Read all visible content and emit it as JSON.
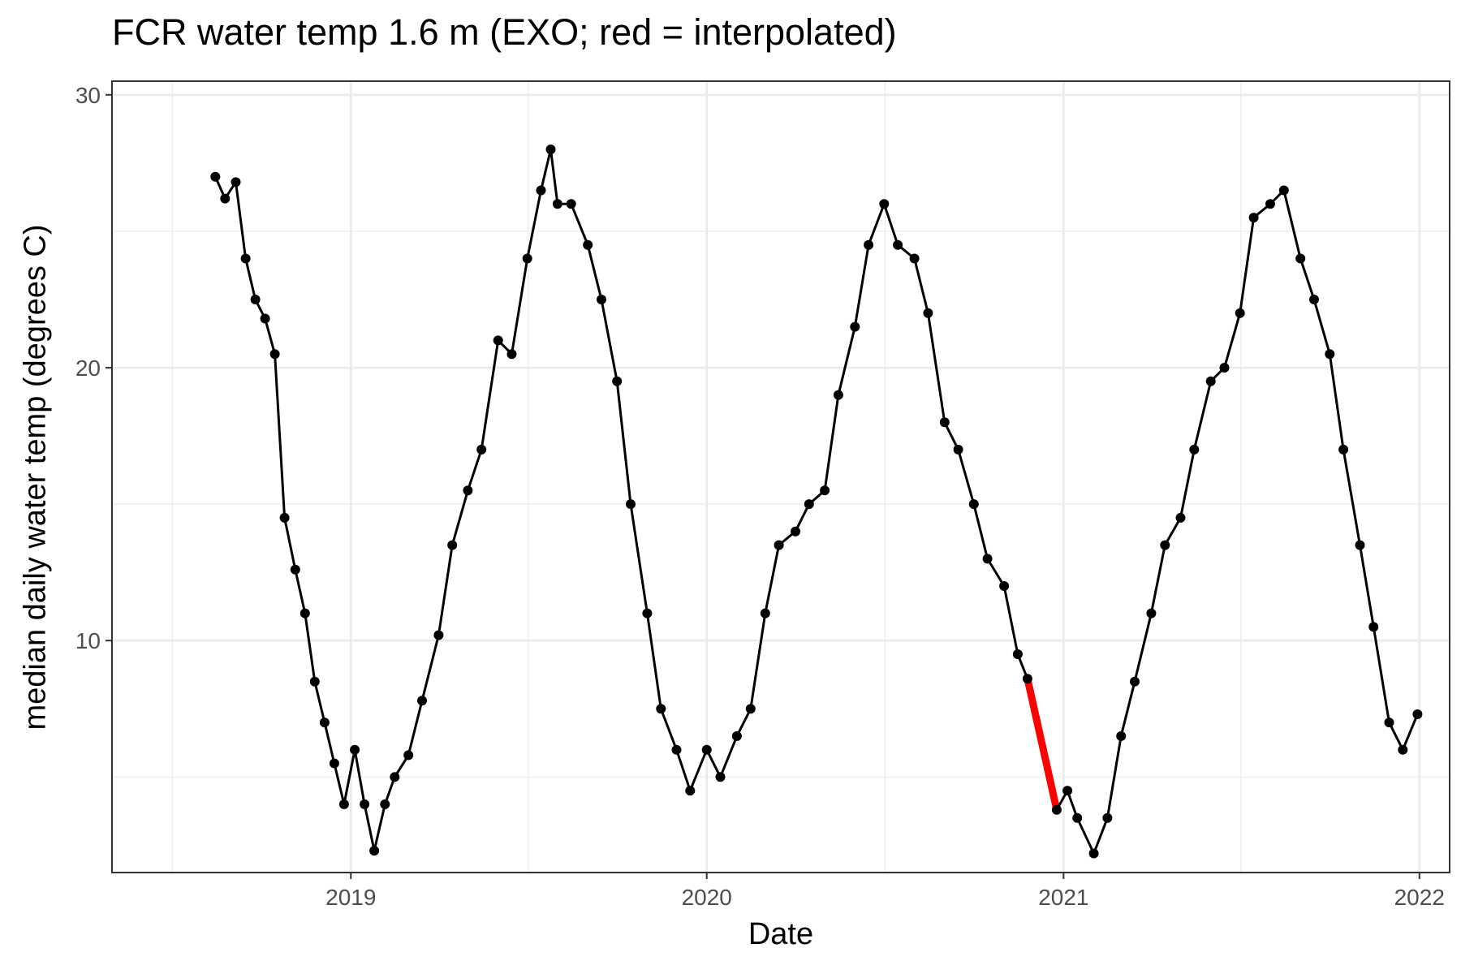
{
  "chart_data": {
    "type": "line",
    "title": "FCR water temp 1.6 m (EXO; red = interpolated)",
    "xlabel": "Date",
    "ylabel": "median daily water temp (degrees C)",
    "x_ticks": [
      "2019",
      "2020",
      "2021",
      "2022"
    ],
    "y_ticks": [
      10,
      20,
      30
    ],
    "xlim": [
      "2018-05-01",
      "2022-02-01"
    ],
    "ylim": [
      1.5,
      30.5
    ],
    "grid": true,
    "legend": "none",
    "colors": {
      "observed": "#000000",
      "interpolated": "#ff0000",
      "grid": "#ebebeb"
    },
    "series": [
      {
        "role": "observed",
        "points": [
          [
            "2018-08-15",
            27.0
          ],
          [
            "2018-08-25",
            26.2
          ],
          [
            "2018-09-05",
            26.8
          ],
          [
            "2018-09-15",
            24.0
          ],
          [
            "2018-09-25",
            22.5
          ],
          [
            "2018-10-05",
            21.8
          ],
          [
            "2018-10-15",
            20.5
          ],
          [
            "2018-10-25",
            14.5
          ],
          [
            "2018-11-05",
            12.6
          ],
          [
            "2018-11-15",
            11.0
          ],
          [
            "2018-11-25",
            8.5
          ],
          [
            "2018-12-05",
            7.0
          ],
          [
            "2018-12-15",
            5.5
          ],
          [
            "2018-12-25",
            4.0
          ],
          [
            "2019-01-05",
            6.0
          ],
          [
            "2019-01-15",
            4.0
          ],
          [
            "2019-01-25",
            2.3
          ],
          [
            "2019-02-05",
            4.0
          ],
          [
            "2019-02-15",
            5.0
          ],
          [
            "2019-03-01",
            5.8
          ],
          [
            "2019-03-15",
            7.8
          ],
          [
            "2019-04-01",
            10.2
          ],
          [
            "2019-04-15",
            13.5
          ],
          [
            "2019-05-01",
            15.5
          ],
          [
            "2019-05-15",
            17.0
          ],
          [
            "2019-06-01",
            21.0
          ],
          [
            "2019-06-15",
            20.5
          ],
          [
            "2019-07-01",
            24.0
          ],
          [
            "2019-07-15",
            26.5
          ],
          [
            "2019-07-25",
            28.0
          ],
          [
            "2019-08-01",
            26.0
          ],
          [
            "2019-08-15",
            26.0
          ],
          [
            "2019-09-01",
            24.5
          ],
          [
            "2019-09-15",
            22.5
          ],
          [
            "2019-10-01",
            19.5
          ],
          [
            "2019-10-15",
            15.0
          ],
          [
            "2019-11-01",
            11.0
          ],
          [
            "2019-11-15",
            7.5
          ],
          [
            "2019-12-01",
            6.0
          ],
          [
            "2019-12-15",
            4.5
          ],
          [
            "2020-01-01",
            6.0
          ],
          [
            "2020-01-15",
            5.0
          ],
          [
            "2020-02-01",
            6.5
          ],
          [
            "2020-02-15",
            7.5
          ],
          [
            "2020-03-01",
            11.0
          ],
          [
            "2020-03-15",
            13.5
          ],
          [
            "2020-04-01",
            14.0
          ],
          [
            "2020-04-15",
            15.0
          ],
          [
            "2020-05-01",
            15.5
          ],
          [
            "2020-05-15",
            19.0
          ],
          [
            "2020-06-01",
            21.5
          ],
          [
            "2020-06-15",
            24.5
          ],
          [
            "2020-07-01",
            26.0
          ],
          [
            "2020-07-15",
            24.5
          ],
          [
            "2020-08-01",
            24.0
          ],
          [
            "2020-08-15",
            22.0
          ],
          [
            "2020-09-01",
            18.0
          ],
          [
            "2020-09-15",
            17.0
          ],
          [
            "2020-10-01",
            15.0
          ],
          [
            "2020-10-15",
            13.0
          ],
          [
            "2020-11-01",
            12.0
          ],
          [
            "2020-11-15",
            9.5
          ],
          [
            "2020-11-25",
            8.6
          ],
          [
            "2020-12-25",
            3.8
          ],
          [
            "2021-01-05",
            4.5
          ],
          [
            "2021-01-15",
            3.5
          ],
          [
            "2021-02-01",
            2.2
          ],
          [
            "2021-02-15",
            3.5
          ],
          [
            "2021-03-01",
            6.5
          ],
          [
            "2021-03-15",
            8.5
          ],
          [
            "2021-04-01",
            11.0
          ],
          [
            "2021-04-15",
            13.5
          ],
          [
            "2021-05-01",
            14.5
          ],
          [
            "2021-05-15",
            17.0
          ],
          [
            "2021-06-01",
            19.5
          ],
          [
            "2021-06-15",
            20.0
          ],
          [
            "2021-07-01",
            22.0
          ],
          [
            "2021-07-15",
            25.5
          ],
          [
            "2021-08-01",
            26.0
          ],
          [
            "2021-08-15",
            26.5
          ],
          [
            "2021-09-01",
            24.0
          ],
          [
            "2021-09-15",
            22.5
          ],
          [
            "2021-10-01",
            20.5
          ],
          [
            "2021-10-15",
            17.0
          ],
          [
            "2021-11-01",
            13.5
          ],
          [
            "2021-11-15",
            10.5
          ],
          [
            "2021-12-01",
            7.0
          ],
          [
            "2021-12-15",
            6.0
          ],
          [
            "2021-12-30",
            7.3
          ]
        ]
      },
      {
        "role": "interpolated",
        "points": [
          [
            "2020-11-25",
            8.6
          ],
          [
            "2020-12-25",
            3.8
          ]
        ]
      }
    ]
  }
}
